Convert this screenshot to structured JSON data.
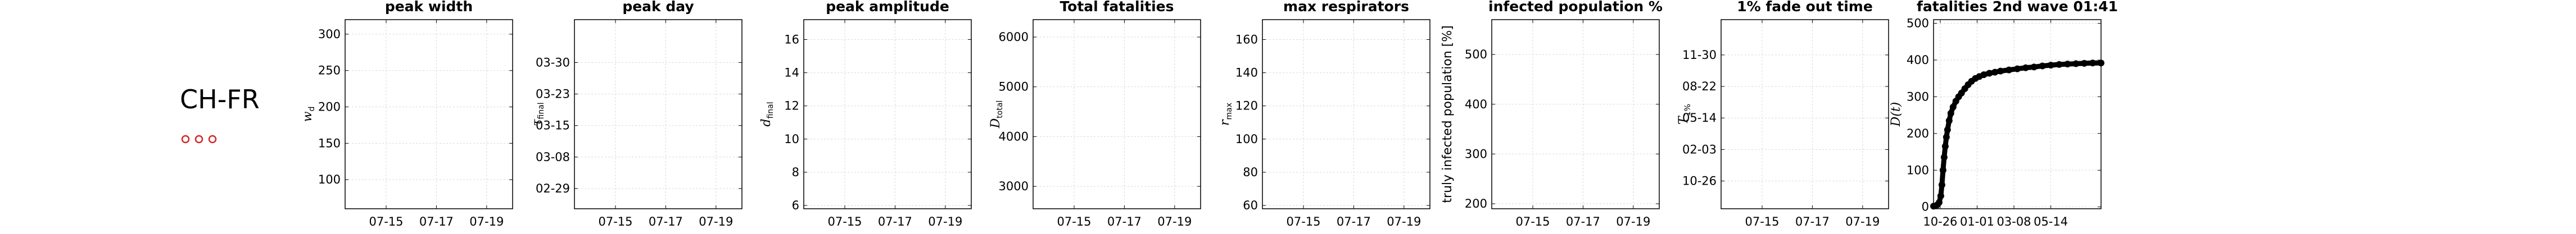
{
  "region_label": "CH-FR",
  "markers_color": "#d62728",
  "chart_data": [
    {
      "type": "scatter",
      "title": "peak width",
      "ylabel": "w_d",
      "ylabel_symbol": "w",
      "ylabel_sub": "d",
      "ylim": [
        60,
        320
      ],
      "yticks": [
        100,
        150,
        200,
        250,
        300
      ],
      "xticks": [
        "07-15",
        "07-17",
        "07-19"
      ],
      "grid": true,
      "points": []
    },
    {
      "type": "scatter",
      "title": "peak day",
      "ylabel": "τ_final",
      "ylabel_symbol": "τ",
      "ylabel_sub": "final",
      "ylim": [
        0,
        7
      ],
      "yticks": [
        "02-29",
        "03-08",
        "03-15",
        "03-23",
        "03-30"
      ],
      "xticks": [
        "07-15",
        "07-17",
        "07-19"
      ],
      "grid": true,
      "points": []
    },
    {
      "type": "scatter",
      "title": "peak amplitude",
      "ylabel": "d_final",
      "ylabel_symbol": "d",
      "ylabel_sub": "final",
      "ylim": [
        5.8,
        17.2
      ],
      "yticks": [
        6,
        8,
        10,
        12,
        14,
        16
      ],
      "xticks": [
        "07-15",
        "07-17",
        "07-19"
      ],
      "grid": true,
      "points": []
    },
    {
      "type": "scatter",
      "title": "Total fatalities",
      "ylabel": "D_total",
      "ylabel_symbol": "D",
      "ylabel_sub": "total",
      "ylim": [
        2550,
        6350
      ],
      "yticks": [
        3000,
        4000,
        5000,
        6000
      ],
      "xticks": [
        "07-15",
        "07-17",
        "07-19"
      ],
      "grid": true,
      "points": []
    },
    {
      "type": "scatter",
      "title": "max respirators",
      "ylabel": "r_max",
      "ylabel_symbol": "r",
      "ylabel_sub": "max",
      "ylim": [
        58,
        172
      ],
      "yticks": [
        60,
        80,
        100,
        120,
        140,
        160
      ],
      "xticks": [
        "07-15",
        "07-17",
        "07-19"
      ],
      "grid": true,
      "points": []
    },
    {
      "type": "scatter",
      "title": "infected population %",
      "ylabel": "truly infected population [%]",
      "ylim": [
        190,
        570
      ],
      "yticks": [
        200,
        300,
        400,
        500
      ],
      "xticks": [
        "07-15",
        "07-17",
        "07-19"
      ],
      "grid": true,
      "points": []
    },
    {
      "type": "scatter",
      "title": "1% fade out time",
      "ylabel": "T_1%",
      "ylabel_symbol": "T",
      "ylabel_sub": "1%",
      "ylim": [
        0,
        6
      ],
      "yticks": [
        "10-26",
        "02-03",
        "05-14",
        "08-22",
        "11-30"
      ],
      "xticks": [
        "07-15",
        "07-17",
        "07-19"
      ],
      "grid": true,
      "points": []
    },
    {
      "type": "scatter",
      "title": "fatalities 2nd wave 01:41",
      "ylabel": "D(t)",
      "ylim": [
        -5,
        510
      ],
      "yticks": [
        0,
        100,
        200,
        300,
        400,
        500
      ],
      "xticks": [
        "10-26",
        "01-01",
        "03-08",
        "05-14"
      ],
      "grid": true,
      "xlim": [
        0,
        300
      ],
      "x_tick_positions": [
        12,
        78,
        144,
        210
      ],
      "series": [
        {
          "x": [
            0,
            6,
            10,
            13,
            15,
            17,
            19,
            21,
            23,
            25,
            28,
            31,
            35,
            40,
            45,
            50,
            56,
            62,
            68,
            75,
            82,
            90,
            100,
            110,
            120,
            135,
            150,
            165,
            180,
            195,
            210,
            225,
            240,
            255,
            270,
            285,
            300
          ],
          "y": [
            2,
            5,
            12,
            30,
            60,
            100,
            135,
            165,
            190,
            210,
            235,
            255,
            272,
            288,
            300,
            310,
            322,
            333,
            342,
            350,
            355,
            360,
            364,
            367,
            370,
            373,
            376,
            379,
            381,
            384,
            386,
            388,
            389,
            390,
            391,
            392,
            392
          ]
        }
      ]
    }
  ]
}
